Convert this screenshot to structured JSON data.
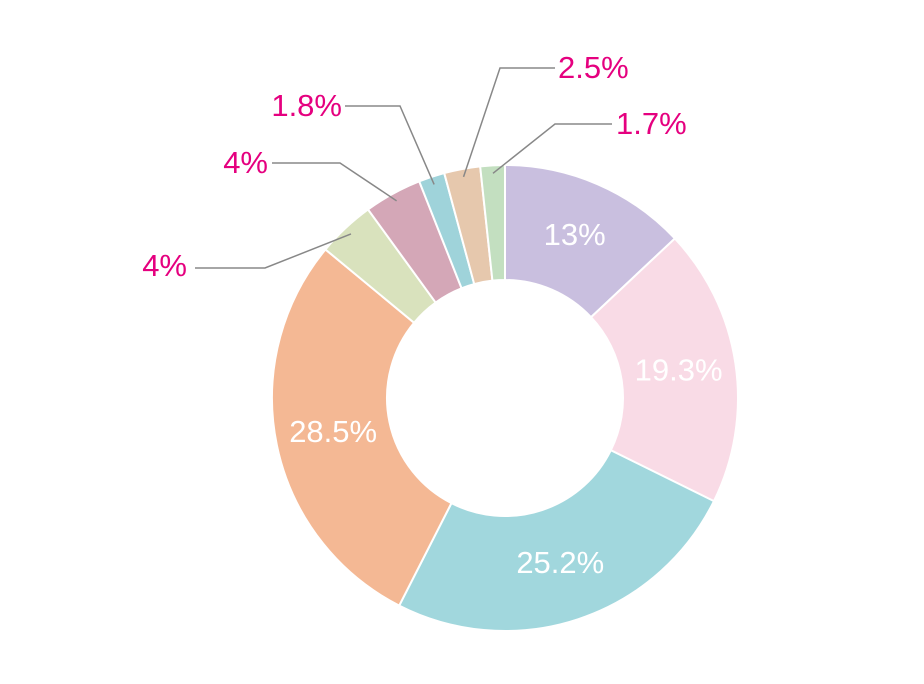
{
  "chart_data": {
    "type": "donut",
    "values": [
      13,
      19.3,
      25.2,
      28.5,
      4,
      4,
      1.8,
      2.5,
      1.7
    ],
    "value_labels": [
      "13%",
      "19.3%",
      "25.2%",
      "28.5%",
      "4%",
      "4%",
      "1.8%",
      "2.5%",
      "1.7%"
    ],
    "colors": [
      "#c9bfdf",
      "#f9dbe6",
      "#a1d7dd",
      "#f4b894",
      "#d9e2bd",
      "#d4a7b7",
      "#9fd3da",
      "#e6c8ad",
      "#c3dfc0"
    ]
  }
}
